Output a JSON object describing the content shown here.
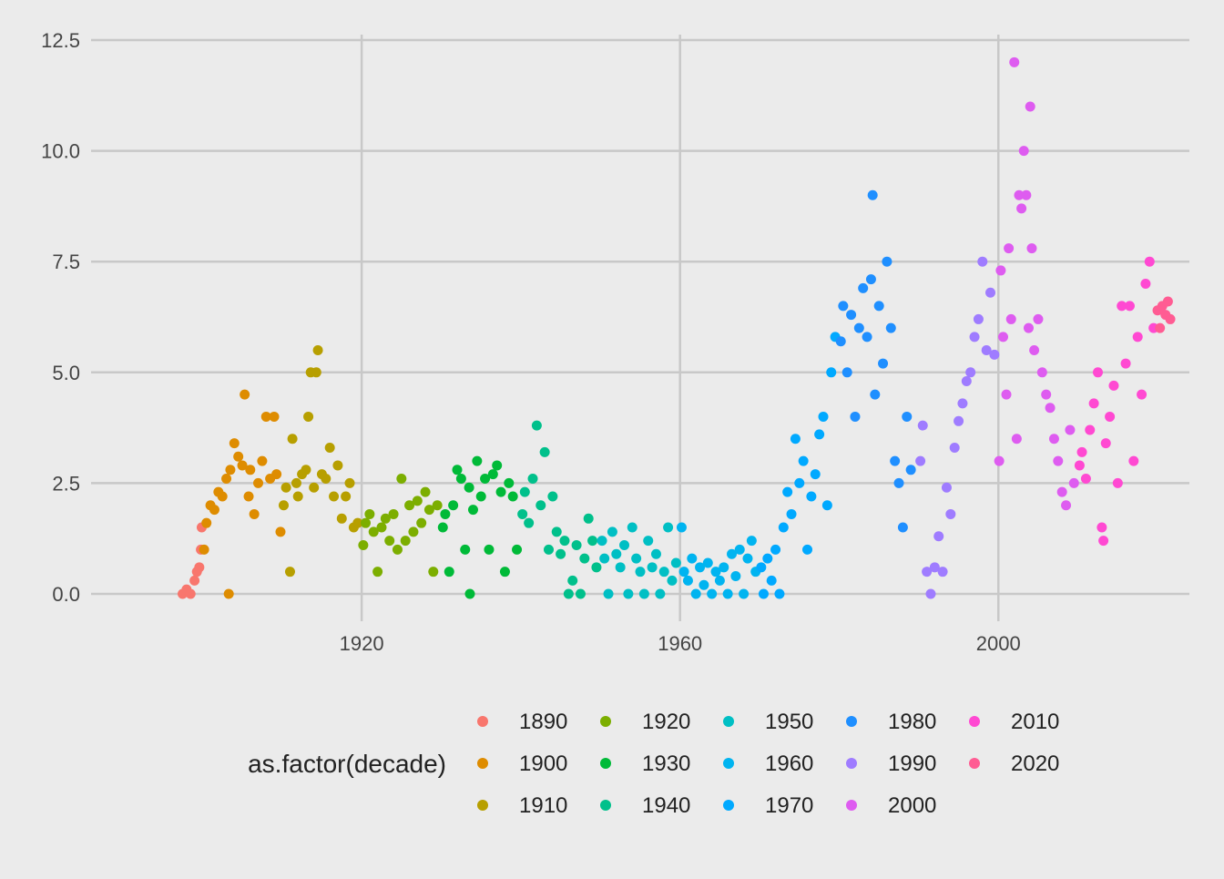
{
  "chart_data": {
    "type": "scatter",
    "title": "",
    "xlabel": "",
    "ylabel": "",
    "xlim": [
      1886,
      2024
    ],
    "ylim": [
      0,
      12.5
    ],
    "x_ticks": [
      1920,
      1960,
      2000
    ],
    "x_tick_labels": [
      "1920",
      "1960",
      "2000"
    ],
    "y_ticks": [
      0,
      2.5,
      5,
      7.5,
      10,
      12.5
    ],
    "y_tick_labels": [
      "0.0",
      "2.5",
      "5.0",
      "7.5",
      "10.0",
      "12.5"
    ],
    "grid": true,
    "legend_placement": "bottom",
    "legend_title": "as.factor(decade)",
    "legend_columns": 5,
    "series": [
      {
        "name": "1890",
        "color": "#F8766D",
        "points": [
          [
            1897.5,
            0
          ],
          [
            1898.0,
            0.1
          ],
          [
            1898.5,
            0
          ],
          [
            1899.0,
            0.3
          ],
          [
            1899.3,
            0.5
          ],
          [
            1899.6,
            0.6
          ],
          [
            1899.8,
            1.0
          ],
          [
            1899.9,
            1.5
          ]
        ]
      },
      {
        "name": "1900",
        "color": "#DE8C00",
        "points": [
          [
            1900.2,
            1.0
          ],
          [
            1900.5,
            1.6
          ],
          [
            1901.0,
            2.0
          ],
          [
            1901.5,
            1.9
          ],
          [
            1902.0,
            2.3
          ],
          [
            1902.5,
            2.2
          ],
          [
            1903.0,
            2.6
          ],
          [
            1903.5,
            2.8
          ],
          [
            1904.0,
            3.4
          ],
          [
            1904.5,
            3.1
          ],
          [
            1905.0,
            2.9
          ],
          [
            1905.3,
            4.5
          ],
          [
            1905.8,
            2.2
          ],
          [
            1906.0,
            2.8
          ],
          [
            1906.5,
            1.8
          ],
          [
            1907.0,
            2.5
          ],
          [
            1907.5,
            3.0
          ],
          [
            1908.0,
            4.0
          ],
          [
            1908.5,
            2.6
          ],
          [
            1909.0,
            4.0
          ],
          [
            1909.3,
            2.7
          ],
          [
            1909.8,
            1.4
          ],
          [
            1903.3,
            0
          ]
        ]
      },
      {
        "name": "1910",
        "color": "#B79F00",
        "points": [
          [
            1910.2,
            2.0
          ],
          [
            1910.5,
            2.4
          ],
          [
            1911.0,
            0.5
          ],
          [
            1911.3,
            3.5
          ],
          [
            1911.8,
            2.5
          ],
          [
            1912.0,
            2.2
          ],
          [
            1912.5,
            2.7
          ],
          [
            1913.0,
            2.8
          ],
          [
            1913.3,
            4.0
          ],
          [
            1913.6,
            5.0
          ],
          [
            1914.0,
            2.4
          ],
          [
            1914.3,
            5.0
          ],
          [
            1914.5,
            5.5
          ],
          [
            1915.0,
            2.7
          ],
          [
            1915.5,
            2.6
          ],
          [
            1916.0,
            3.3
          ],
          [
            1916.5,
            2.2
          ],
          [
            1917.0,
            2.9
          ],
          [
            1917.5,
            1.7
          ],
          [
            1918.0,
            2.2
          ],
          [
            1918.5,
            2.5
          ],
          [
            1919.0,
            1.5
          ],
          [
            1919.5,
            1.6
          ]
        ]
      },
      {
        "name": "1920",
        "color": "#7CAE00",
        "points": [
          [
            1920.2,
            1.1
          ],
          [
            1920.5,
            1.6
          ],
          [
            1921.0,
            1.8
          ],
          [
            1921.5,
            1.4
          ],
          [
            1922.0,
            0.5
          ],
          [
            1922.5,
            1.5
          ],
          [
            1923.0,
            1.7
          ],
          [
            1923.5,
            1.2
          ],
          [
            1924.0,
            1.8
          ],
          [
            1924.5,
            1.0
          ],
          [
            1925.0,
            2.6
          ],
          [
            1925.5,
            1.2
          ],
          [
            1926.0,
            2.0
          ],
          [
            1926.5,
            1.4
          ],
          [
            1927.0,
            2.1
          ],
          [
            1927.5,
            1.6
          ],
          [
            1928.0,
            2.3
          ],
          [
            1928.5,
            1.9
          ],
          [
            1929.0,
            0.5
          ],
          [
            1929.5,
            2.0
          ]
        ]
      },
      {
        "name": "1930",
        "color": "#00BA38",
        "points": [
          [
            1930.2,
            1.5
          ],
          [
            1930.5,
            1.8
          ],
          [
            1931.0,
            0.5
          ],
          [
            1931.5,
            2.0
          ],
          [
            1932.0,
            2.8
          ],
          [
            1932.5,
            2.6
          ],
          [
            1933.0,
            1.0
          ],
          [
            1933.5,
            2.4
          ],
          [
            1934.0,
            1.9
          ],
          [
            1934.5,
            3.0
          ],
          [
            1935.0,
            2.2
          ],
          [
            1935.5,
            2.6
          ],
          [
            1936.0,
            1.0
          ],
          [
            1936.5,
            2.7
          ],
          [
            1937.0,
            2.9
          ],
          [
            1937.5,
            2.3
          ],
          [
            1938.0,
            0.5
          ],
          [
            1938.5,
            2.5
          ],
          [
            1939.0,
            2.2
          ],
          [
            1939.5,
            1.0
          ],
          [
            1933.6,
            0
          ]
        ]
      },
      {
        "name": "1940",
        "color": "#00C08B",
        "points": [
          [
            1940.2,
            1.8
          ],
          [
            1940.5,
            2.3
          ],
          [
            1941.0,
            1.6
          ],
          [
            1941.5,
            2.6
          ],
          [
            1942.0,
            3.8
          ],
          [
            1942.5,
            2.0
          ],
          [
            1943.0,
            3.2
          ],
          [
            1943.5,
            1.0
          ],
          [
            1944.0,
            2.2
          ],
          [
            1944.5,
            1.4
          ],
          [
            1945.0,
            0.9
          ],
          [
            1945.5,
            1.2
          ],
          [
            1946.0,
            0
          ],
          [
            1946.5,
            0.3
          ],
          [
            1947.0,
            1.1
          ],
          [
            1947.5,
            0
          ],
          [
            1948.0,
            0.8
          ],
          [
            1948.5,
            1.7
          ],
          [
            1949.0,
            1.2
          ],
          [
            1949.5,
            0.6
          ]
        ]
      },
      {
        "name": "1950",
        "color": "#00BFC4",
        "points": [
          [
            1950.2,
            1.2
          ],
          [
            1950.5,
            0.8
          ],
          [
            1951.0,
            0
          ],
          [
            1951.5,
            1.4
          ],
          [
            1952.0,
            0.9
          ],
          [
            1952.5,
            0.6
          ],
          [
            1953.0,
            1.1
          ],
          [
            1953.5,
            0
          ],
          [
            1954.0,
            1.5
          ],
          [
            1954.5,
            0.8
          ],
          [
            1955.0,
            0.5
          ],
          [
            1955.5,
            0
          ],
          [
            1956.0,
            1.2
          ],
          [
            1956.5,
            0.6
          ],
          [
            1957.0,
            0.9
          ],
          [
            1957.5,
            0
          ],
          [
            1958.0,
            0.5
          ],
          [
            1958.5,
            1.5
          ],
          [
            1959.0,
            0.3
          ],
          [
            1959.5,
            0.7
          ]
        ]
      },
      {
        "name": "1960",
        "color": "#00B4F0",
        "points": [
          [
            1960.2,
            1.5
          ],
          [
            1960.5,
            0.5
          ],
          [
            1961.0,
            0.3
          ],
          [
            1961.5,
            0.8
          ],
          [
            1962.0,
            0
          ],
          [
            1962.5,
            0.6
          ],
          [
            1963.0,
            0.2
          ],
          [
            1963.5,
            0.7
          ],
          [
            1964.0,
            0
          ],
          [
            1964.5,
            0.5
          ],
          [
            1965.0,
            0.3
          ],
          [
            1965.5,
            0.6
          ],
          [
            1966.0,
            0
          ],
          [
            1966.5,
            0.9
          ],
          [
            1967.0,
            0.4
          ],
          [
            1967.5,
            1.0
          ],
          [
            1968.0,
            0
          ],
          [
            1968.5,
            0.8
          ],
          [
            1969.0,
            1.2
          ],
          [
            1969.5,
            0.5
          ]
        ]
      },
      {
        "name": "1970",
        "color": "#619CFF",
        "points": [
          [
            1970.2,
            0.6
          ],
          [
            1970.5,
            0
          ],
          [
            1971.0,
            0.8
          ],
          [
            1971.5,
            0.3
          ],
          [
            1972.0,
            1.0
          ],
          [
            1972.5,
            0
          ],
          [
            1973.0,
            1.5
          ],
          [
            1973.5,
            2.3
          ],
          [
            1974.0,
            1.8
          ],
          [
            1974.5,
            3.5
          ],
          [
            1975.0,
            2.5
          ],
          [
            1975.5,
            3.0
          ],
          [
            1976.0,
            1.0
          ],
          [
            1976.5,
            2.2
          ],
          [
            1977.0,
            2.7
          ],
          [
            1977.5,
            3.6
          ],
          [
            1978.0,
            4.0
          ],
          [
            1978.5,
            2.0
          ],
          [
            1979.0,
            5.0
          ],
          [
            1979.5,
            5.8
          ]
        ]
      },
      {
        "name": "1980",
        "color": "#F564E3",
        "points": [
          [
            1980.2,
            5.7
          ],
          [
            1980.5,
            6.5
          ],
          [
            1981.0,
            5.0
          ],
          [
            1981.5,
            6.3
          ],
          [
            1982.0,
            4.0
          ],
          [
            1982.5,
            6.0
          ],
          [
            1983.0,
            6.9
          ],
          [
            1983.5,
            5.8
          ],
          [
            1984.0,
            7.1
          ],
          [
            1984.2,
            9.0
          ],
          [
            1984.5,
            4.5
          ],
          [
            1985.0,
            6.5
          ],
          [
            1985.5,
            5.2
          ],
          [
            1986.0,
            7.5
          ],
          [
            1986.5,
            6.0
          ],
          [
            1987.0,
            3.0
          ],
          [
            1987.5,
            2.5
          ],
          [
            1988.0,
            1.5
          ],
          [
            1988.5,
            4.0
          ],
          [
            1989.0,
            2.8
          ]
        ]
      },
      {
        "name": "1990",
        "color": "#C77CFF",
        "points": [
          [
            1990.2,
            3.0
          ],
          [
            1990.5,
            3.8
          ],
          [
            1991.0,
            0.5
          ],
          [
            1991.5,
            0
          ],
          [
            1992.0,
            0.6
          ],
          [
            1992.5,
            1.3
          ],
          [
            1993.0,
            0.5
          ],
          [
            1993.5,
            2.4
          ],
          [
            1994.0,
            1.8
          ],
          [
            1994.5,
            3.3
          ],
          [
            1995.0,
            3.9
          ],
          [
            1995.5,
            4.3
          ],
          [
            1996.0,
            4.8
          ],
          [
            1996.5,
            5.0
          ],
          [
            1997.0,
            5.8
          ],
          [
            1997.5,
            6.2
          ],
          [
            1998.0,
            7.5
          ],
          [
            1998.5,
            5.5
          ],
          [
            1999.0,
            6.8
          ],
          [
            1999.5,
            5.4
          ]
        ]
      },
      {
        "name": "2000",
        "color": "#FF61C3",
        "points": [
          [
            2000.1,
            3.0
          ],
          [
            2000.3,
            7.3
          ],
          [
            2000.6,
            5.8
          ],
          [
            2001.0,
            4.5
          ],
          [
            2001.3,
            7.8
          ],
          [
            2001.6,
            6.2
          ],
          [
            2002.0,
            12.0
          ],
          [
            2002.3,
            3.5
          ],
          [
            2002.6,
            9.0
          ],
          [
            2002.9,
            8.7
          ],
          [
            2003.2,
            10.0
          ],
          [
            2003.5,
            9.0
          ],
          [
            2003.8,
            6.0
          ],
          [
            2004.0,
            11.0
          ],
          [
            2004.2,
            7.8
          ],
          [
            2004.5,
            5.5
          ],
          [
            2005.0,
            6.2
          ],
          [
            2005.5,
            5.0
          ],
          [
            2006.0,
            4.5
          ],
          [
            2006.5,
            4.2
          ],
          [
            2007.0,
            3.5
          ],
          [
            2007.5,
            3.0
          ],
          [
            2008.0,
            2.3
          ],
          [
            2008.5,
            2.0
          ],
          [
            2009.0,
            3.7
          ],
          [
            2009.5,
            2.5
          ]
        ]
      },
      {
        "name": "2010",
        "color": "#FF67A4",
        "points": [
          [
            2010.2,
            2.9
          ],
          [
            2010.5,
            3.2
          ],
          [
            2011.0,
            2.6
          ],
          [
            2011.5,
            3.7
          ],
          [
            2012.0,
            4.3
          ],
          [
            2012.5,
            5.0
          ],
          [
            2013.0,
            1.5
          ],
          [
            2013.2,
            1.2
          ],
          [
            2013.5,
            3.4
          ],
          [
            2014.0,
            4.0
          ],
          [
            2014.5,
            4.7
          ],
          [
            2015.0,
            2.5
          ],
          [
            2015.5,
            6.5
          ],
          [
            2016.0,
            5.2
          ],
          [
            2016.5,
            6.5
          ],
          [
            2017.0,
            3.0
          ],
          [
            2017.5,
            5.8
          ],
          [
            2018.0,
            4.5
          ],
          [
            2018.5,
            7.0
          ],
          [
            2019.0,
            7.5
          ],
          [
            2019.5,
            6.0
          ]
        ]
      },
      {
        "name": "2020",
        "color": "#F8766D",
        "points": [
          [
            2020.0,
            6.4
          ],
          [
            2020.3,
            6.0
          ],
          [
            2020.6,
            6.5
          ],
          [
            2021.0,
            6.3
          ],
          [
            2021.3,
            6.6
          ],
          [
            2021.6,
            6.2
          ]
        ]
      }
    ]
  }
}
